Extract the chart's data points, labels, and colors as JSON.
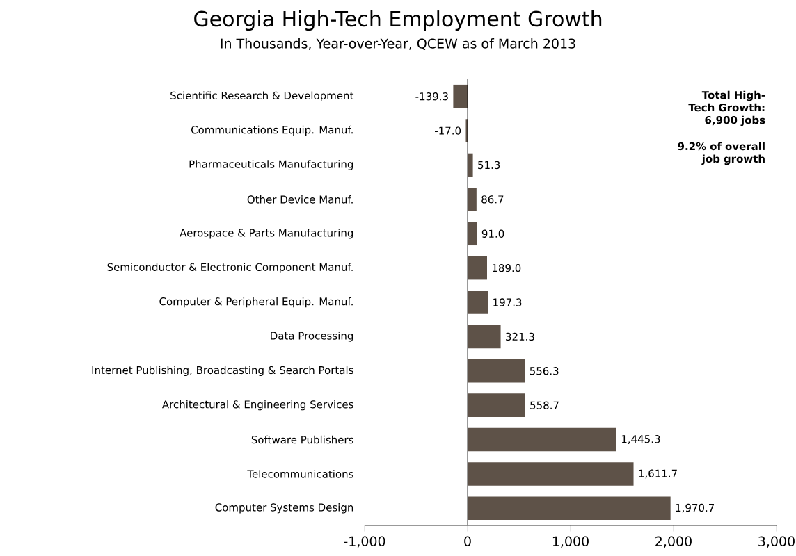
{
  "chart_data": {
    "type": "bar",
    "orientation": "horizontal",
    "title": "Georgia High-Tech Employment Growth",
    "subtitle": "In Thousands, Year-over-Year, QCEW as of March 2013",
    "categories": [
      "Scientific Research & Development",
      "Communications Equip. Manuf.",
      "Pharmaceuticals Manufacturing",
      "Other Device Manuf.",
      "Aerospace & Parts Manufacturing",
      "Semiconductor & Electronic Component Manuf.",
      "Computer & Peripheral Equip. Manuf.",
      "Data Processing",
      "Internet Publishing, Broadcasting & Search Portals",
      "Architectural & Engineering Services",
      "Software Publishers",
      "Telecommunications",
      "Computer Systems Design"
    ],
    "values": [
      -139.3,
      -17.0,
      51.3,
      86.7,
      91.0,
      189.0,
      197.3,
      321.3,
      556.3,
      558.7,
      1445.3,
      1611.7,
      1970.7
    ],
    "value_labels": [
      "-139.3",
      "-17.0",
      "51.3",
      "86.7",
      "91.0",
      "189.0",
      "197.3",
      "321.3",
      "556.3",
      "558.7",
      "1,445.3",
      "1,611.7",
      "1,970.7"
    ],
    "color": "#5e5248",
    "xlim": [
      -1000,
      3000
    ],
    "xticks": [
      {
        "value": -1000,
        "label": "-1,000"
      },
      0,
      {
        "value": 1000,
        "label": "1,000"
      },
      {
        "value": 2000,
        "label": "2,000"
      },
      {
        "value": 3000,
        "label": "3,000"
      }
    ],
    "annotations": [
      "**Total High-Tech Growth: 6,900 jobs**",
      "**9.2% of overall job growth**"
    ],
    "ref_lines": [
      {
        "axis": "x",
        "value": 0
      }
    ]
  }
}
